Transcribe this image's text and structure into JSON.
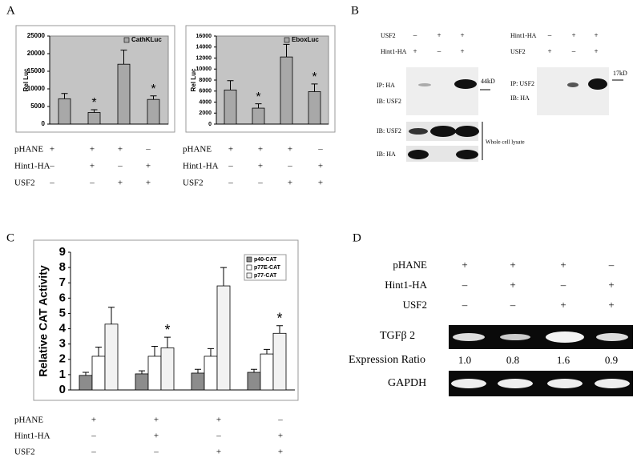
{
  "panel_labels": [
    "A",
    "B",
    "C",
    "D"
  ],
  "chart_data": [
    {
      "type": "bar",
      "y_label": "Rel Luc",
      "categories": [
        null,
        null,
        null,
        null
      ],
      "series": [
        {
          "name": "CathKLuc",
          "color": "#a8a8a8",
          "values": [
            7200,
            3300,
            17000,
            7000
          ],
          "errors": [
            1500,
            800,
            4000,
            1000
          ]
        }
      ],
      "significance": [
        null,
        "*",
        null,
        "*"
      ],
      "ylim": [
        0,
        25000
      ],
      "yticks": [
        0,
        5000,
        10000,
        15000,
        20000,
        25000
      ],
      "background": "#c4c4c4",
      "grid": false
    },
    {
      "type": "bar",
      "y_label": "Rel Luc",
      "categories": [
        null,
        null,
        null,
        null
      ],
      "series": [
        {
          "name": "EboxLuc",
          "color": "#a8a8a8",
          "values": [
            6200,
            2900,
            12200,
            5900
          ],
          "errors": [
            1700,
            800,
            2300,
            1400
          ]
        }
      ],
      "significance": [
        null,
        "*",
        null,
        "*"
      ],
      "ylim": [
        0,
        16000
      ],
      "yticks": [
        0,
        2000,
        4000,
        6000,
        8000,
        10000,
        12000,
        14000,
        16000
      ],
      "background": "#c4c4c4",
      "grid": false
    },
    {
      "type": "bar",
      "y_label": "Relative CAT Activity",
      "categories": [
        null,
        null,
        null,
        null
      ],
      "series": [
        {
          "name": "p40-CAT",
          "color": "#8c8c8c",
          "values": [
            0.95,
            1.05,
            1.1,
            1.15
          ],
          "errors": [
            0.2,
            0.2,
            0.25,
            0.2
          ]
        },
        {
          "name": "p77E-CAT",
          "color": "#ffffff",
          "values": [
            2.2,
            2.2,
            2.2,
            2.35
          ],
          "errors": [
            0.6,
            0.65,
            0.5,
            0.3
          ]
        },
        {
          "name": "p77-CAT",
          "color": "#f2f2f2",
          "values": [
            4.3,
            2.75,
            6.8,
            3.7
          ],
          "errors": [
            1.1,
            0.7,
            1.2,
            0.5
          ]
        }
      ],
      "significance": [
        null,
        "*",
        null,
        "*"
      ],
      "ylim": [
        0,
        9
      ],
      "yticks": [
        0,
        1,
        2,
        3,
        4,
        5,
        6,
        7,
        8,
        9
      ],
      "background": "#ffffff",
      "grid": false
    }
  ],
  "conditions": [
    [
      {
        "label": "pHANE",
        "signs": [
          "+",
          "+",
          "+",
          "–"
        ]
      },
      {
        "label": "Hint1-HA",
        "signs": [
          "–",
          "+",
          "–",
          "+"
        ]
      },
      {
        "label": "USF2",
        "signs": [
          "–",
          "–",
          "+",
          "+"
        ]
      }
    ],
    [
      {
        "label": "pHANE",
        "signs": [
          "+",
          "+",
          "+",
          "–"
        ]
      },
      {
        "label": "Hint1-HA",
        "signs": [
          "–",
          "+",
          "–",
          "+"
        ]
      },
      {
        "label": "USF2",
        "signs": [
          "–",
          "–",
          "+",
          "+"
        ]
      }
    ],
    [
      {
        "label": "pHANE",
        "signs": [
          "+",
          "+",
          "+",
          "–"
        ]
      },
      {
        "label": "Hint1-HA",
        "signs": [
          "–",
          "+",
          "–",
          "+"
        ]
      },
      {
        "label": "USF2",
        "signs": [
          "–",
          "–",
          "+",
          "+"
        ]
      }
    ],
    [
      {
        "label": "pHANE",
        "signs": [
          "+",
          "+",
          "+",
          "–"
        ]
      },
      {
        "label": "Hint1-HA",
        "signs": [
          "–",
          "+",
          "–",
          "+"
        ]
      },
      {
        "label": "USF2",
        "signs": [
          "–",
          "–",
          "+",
          "+"
        ]
      }
    ]
  ],
  "blots": [
    {
      "headers": [
        {
          "label": "USF2",
          "signs": [
            "–",
            "+",
            "+"
          ]
        },
        {
          "label": "Hint1-HA",
          "signs": [
            "+",
            "–",
            "+"
          ]
        }
      ],
      "ip_labels": [
        "IP: HA",
        "IB: USF2"
      ],
      "marker": "44kD",
      "lysate_labels": [
        "IB: USF2",
        "IB: HA"
      ],
      "lysate_note": "Whole cell lysate"
    },
    {
      "headers": [
        {
          "label": "Hint1-HA",
          "signs": [
            "–",
            "+",
            "+"
          ]
        },
        {
          "label": "USF2",
          "signs": [
            "+",
            "–",
            "+"
          ]
        }
      ],
      "ip_labels": [
        "IP: USF2",
        "IB: HA"
      ],
      "marker": "17kD"
    }
  ],
  "gel": {
    "target_label": "TGFβ 2",
    "ratio_label": "Expression Ratio",
    "ratios": [
      "1.0",
      "0.8",
      "1.6",
      "0.9"
    ],
    "control_label": "GAPDH"
  }
}
